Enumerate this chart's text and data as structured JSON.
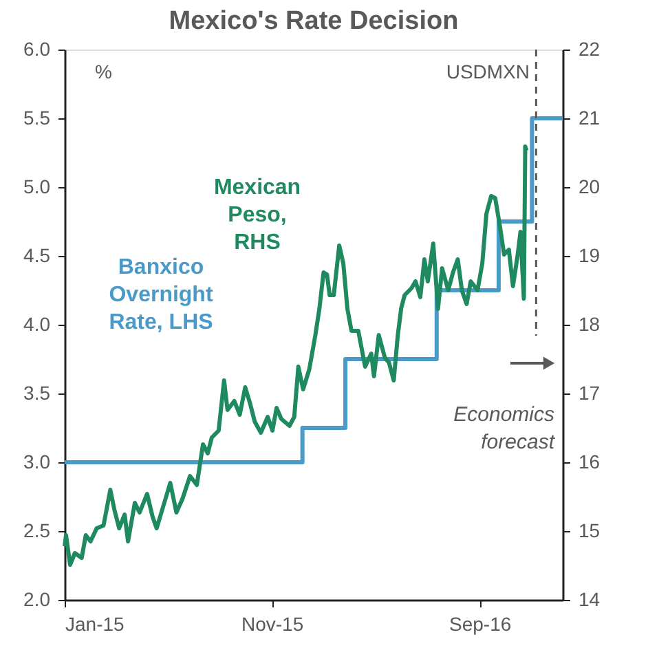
{
  "chart_data": {
    "type": "line",
    "title": "Mexico's Rate Decision",
    "xlim": [
      "2015-01-01",
      "2017-01-01"
    ],
    "xticks": [
      {
        "value": "2015-01-01",
        "label": "Jan-15"
      },
      {
        "value": "2015-11-01",
        "label": "Nov-15"
      },
      {
        "value": "2016-09-01",
        "label": "Sep-16"
      }
    ],
    "ylim": [
      2,
      6
    ],
    "yticks": [
      {
        "value": 2,
        "label": "2.0"
      },
      {
        "value": 2.5,
        "label": "2.5"
      },
      {
        "value": 3,
        "label": "3.0"
      },
      {
        "value": 3.5,
        "label": "3.5"
      },
      {
        "value": 4,
        "label": "4.0"
      },
      {
        "value": 4.5,
        "label": "4.5"
      },
      {
        "value": 5,
        "label": "5.0"
      },
      {
        "value": 5.5,
        "label": "5.5"
      },
      {
        "value": 6,
        "label": "6.0"
      }
    ],
    "y2lim": [
      14,
      22
    ],
    "y2ticks": [
      14,
      15,
      16,
      17,
      18,
      19,
      20,
      21,
      22
    ],
    "ylabel": "%",
    "y2label": "USDMXN",
    "grid": false,
    "legend": false,
    "series": [
      {
        "name": "Banxico Overnight Rate, LHS",
        "type": "step",
        "color": "#4a9ac9",
        "x": [
          "2015-01-01",
          "2015-12-16",
          "2016-02-17",
          "2016-06-30",
          "2016-09-29",
          "2016-11-17",
          "2016-12-31"
        ],
        "values": [
          3,
          3.25,
          3.75,
          4.25,
          4.75,
          5.5,
          5.5
        ]
      },
      {
        "name": "Mexican Peso, RHS",
        "axis": "y2",
        "color": "#1f8a5f",
        "x": [
          "2015-01-01",
          "2015-01-03",
          "2015-01-09",
          "2015-01-16",
          "2015-01-26",
          "2015-02-01",
          "2015-02-08",
          "2015-02-17",
          "2015-02-27",
          "2015-03-09",
          "2015-03-15",
          "2015-03-22",
          "2015-03-30",
          "2015-04-04",
          "2015-04-14",
          "2015-04-21",
          "2015-05-02",
          "2015-05-10",
          "2015-05-16",
          "2015-05-26",
          "2015-06-05",
          "2015-06-14",
          "2015-06-23",
          "2015-07-04",
          "2015-07-14",
          "2015-07-23",
          "2015-07-30",
          "2015-08-05",
          "2015-08-15",
          "2015-08-23",
          "2015-08-28",
          "2015-09-07",
          "2015-09-15",
          "2015-09-23",
          "2015-09-30",
          "2015-10-07",
          "2015-10-16",
          "2015-10-26",
          "2015-11-02",
          "2015-11-08",
          "2015-11-15",
          "2015-11-27",
          "2015-12-04",
          "2015-12-10",
          "2015-12-17",
          "2015-12-26",
          "2016-01-04",
          "2016-01-10",
          "2016-01-16",
          "2016-01-21",
          "2016-01-25",
          "2016-01-31",
          "2016-02-08",
          "2016-02-14",
          "2016-02-20",
          "2016-02-26",
          "2016-03-07",
          "2016-03-17",
          "2016-03-26",
          "2016-03-30",
          "2016-04-06",
          "2016-04-15",
          "2016-04-21",
          "2016-04-28",
          "2016-05-04",
          "2016-05-09",
          "2016-05-14",
          "2016-05-24",
          "2016-05-30",
          "2016-06-06",
          "2016-06-12",
          "2016-06-17",
          "2016-06-25",
          "2016-07-02",
          "2016-07-08",
          "2016-07-17",
          "2016-07-24",
          "2016-07-31",
          "2016-08-06",
          "2016-08-13",
          "2016-08-19",
          "2016-08-29",
          "2016-09-05",
          "2016-09-11",
          "2016-09-18",
          "2016-09-24",
          "2016-10-01",
          "2016-10-07",
          "2016-10-14",
          "2016-10-20",
          "2016-10-27",
          "2016-10-31",
          "2016-11-05",
          "2016-11-07",
          "2016-11-09"
        ],
        "values": [
          14.78,
          14.94,
          14.51,
          14.68,
          14.61,
          14.94,
          14.85,
          15.04,
          15.08,
          15.6,
          15.31,
          15.04,
          15.24,
          14.85,
          15.41,
          15.27,
          15.54,
          15.21,
          15.04,
          15.37,
          15.7,
          15.27,
          15.47,
          15.8,
          15.67,
          16.26,
          16.13,
          16.36,
          16.46,
          17.19,
          16.76,
          16.89,
          16.69,
          17.09,
          16.86,
          16.59,
          16.43,
          16.66,
          16.46,
          16.79,
          16.63,
          16.53,
          16.66,
          17.39,
          17.06,
          17.35,
          17.85,
          18.24,
          18.76,
          18.73,
          18.43,
          18.43,
          19.15,
          18.89,
          18.23,
          17.91,
          17.91,
          17.39,
          17.58,
          17.25,
          17.85,
          17.52,
          17.45,
          17.19,
          17.85,
          18.24,
          18.43,
          18.53,
          18.63,
          18.4,
          18.95,
          18.63,
          19.18,
          18.23,
          18.82,
          18.5,
          18.76,
          18.95,
          18.5,
          18.3,
          18.63,
          18.5,
          18.89,
          19.61,
          19.87,
          19.84,
          19.42,
          19.02,
          19.09,
          18.56,
          19.02,
          19.35,
          18.38,
          20.59,
          20.53
        ]
      }
    ],
    "ref_lines": [
      {
        "axis": "x",
        "value": "2016-11-23",
        "label": null,
        "color": "#595959",
        "line_style": "dashed"
      }
    ],
    "annotations": [
      "Economics forecast"
    ]
  }
}
